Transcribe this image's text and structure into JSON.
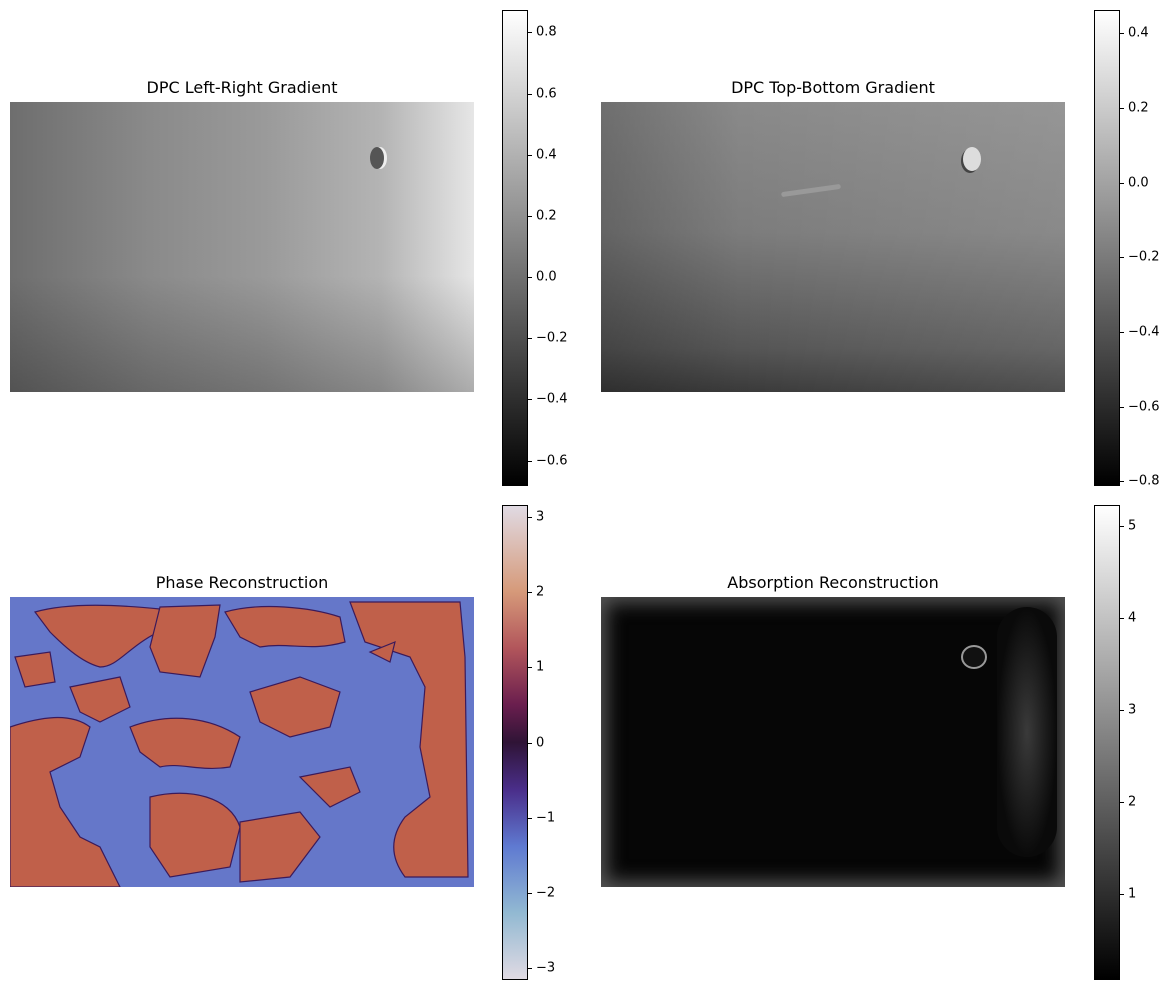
{
  "chart_data": [
    {
      "type": "heatmap",
      "title": "DPC Left-Right Gradient",
      "colormap": "gray",
      "colorbar": {
        "range": [
          -0.68,
          0.87
        ],
        "ticks": [
          -0.6,
          -0.4,
          -0.2,
          0.0,
          0.2,
          0.4,
          0.6,
          0.8
        ],
        "tick_labels": [
          "−0.6",
          "−0.4",
          "−0.2",
          "0.0",
          "0.2",
          "0.4",
          "0.6",
          "0.8"
        ]
      },
      "axes": "off"
    },
    {
      "type": "heatmap",
      "title": "DPC Top-Bottom Gradient",
      "colormap": "gray",
      "colorbar": {
        "range": [
          -0.81,
          0.46
        ],
        "ticks": [
          -0.8,
          -0.6,
          -0.4,
          -0.2,
          0.0,
          0.2,
          0.4
        ],
        "tick_labels": [
          "−0.8",
          "−0.6",
          "−0.4",
          "−0.2",
          "0.0",
          "0.2",
          "0.4"
        ]
      },
      "axes": "off"
    },
    {
      "type": "heatmap",
      "title": "Phase Reconstruction",
      "colormap": "twilight_shifted",
      "colors": {
        "low_region": "#6577c9",
        "high_region": "#c0604a"
      },
      "colorbar": {
        "range": [
          -3.14,
          3.14
        ],
        "ticks": [
          -3,
          -2,
          -1,
          0,
          1,
          2,
          3
        ],
        "tick_labels": [
          "−3",
          "−2",
          "−1",
          "0",
          "1",
          "2",
          "3"
        ]
      },
      "axes": "off"
    },
    {
      "type": "heatmap",
      "title": "Absorption Reconstruction",
      "colormap": "gray",
      "colorbar": {
        "range": [
          0.08,
          5.22
        ],
        "ticks": [
          1,
          2,
          3,
          4,
          5
        ],
        "tick_labels": [
          "1",
          "2",
          "3",
          "4",
          "5"
        ]
      },
      "axes": "off"
    }
  ]
}
